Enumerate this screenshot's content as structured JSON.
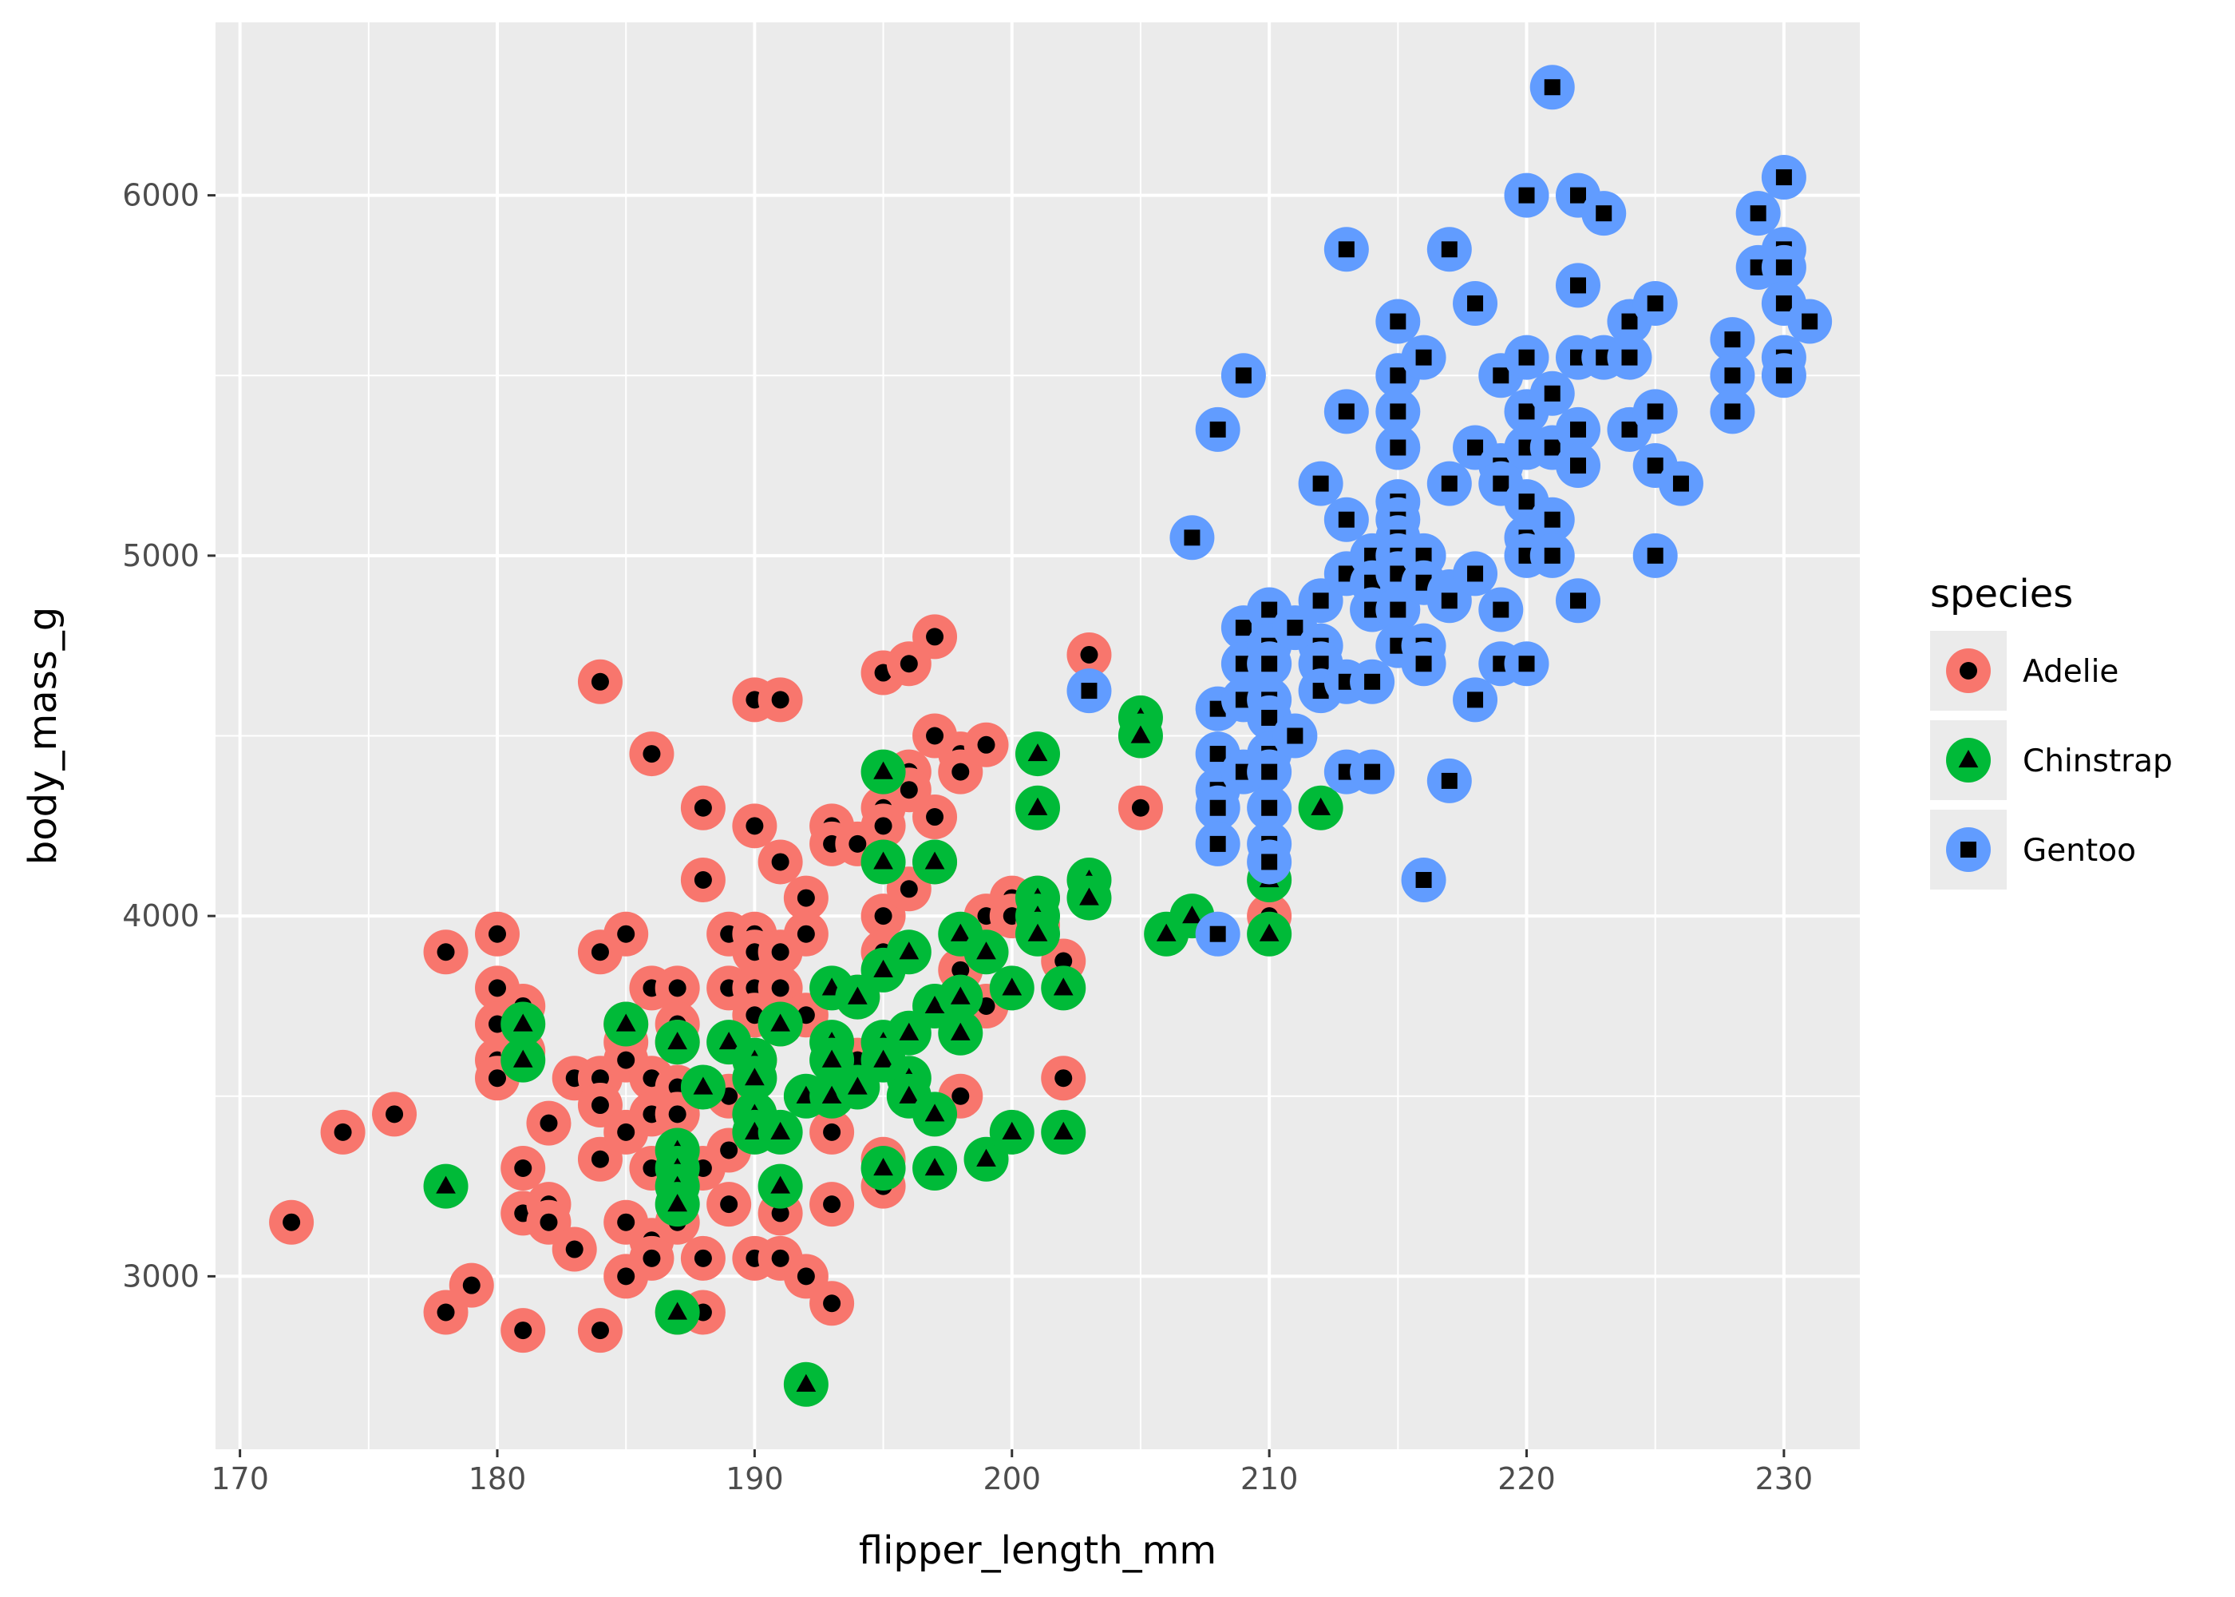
{
  "chart_data": {
    "type": "scatter",
    "title": "",
    "xlabel": "flipper_length_mm",
    "ylabel": "body_mass_g",
    "xlim": [
      169.05,
      232.95
    ],
    "ylim": [
      2520,
      6480
    ],
    "x_ticks": [
      170,
      180,
      190,
      200,
      210,
      220,
      230
    ],
    "x_tick_labels": [
      "170",
      "180",
      "190",
      "200",
      "210",
      "220",
      "230"
    ],
    "y_ticks": [
      3000,
      4000,
      5000,
      6000
    ],
    "y_tick_labels": [
      "3000",
      "4000",
      "5000",
      "6000"
    ],
    "grid": true,
    "panel_background": "#EBEBEB",
    "legend": {
      "title": "species",
      "position": "right",
      "entries": [
        {
          "label": "Adelie",
          "color": "#F8766D",
          "shape": "circle"
        },
        {
          "label": "Chinstrap",
          "color": "#00BA38",
          "shape": "triangle"
        },
        {
          "label": "Gentoo",
          "color": "#619CFF",
          "shape": "square"
        }
      ]
    },
    "series": [
      {
        "name": "Adelie",
        "color": "#F8766D",
        "shape": "circle",
        "points": [
          [
            172,
            3150
          ],
          [
            174,
            3400
          ],
          [
            176,
            3450
          ],
          [
            178,
            3900
          ],
          [
            178,
            2900
          ],
          [
            179,
            2975
          ],
          [
            180,
            3950
          ],
          [
            180,
            3800
          ],
          [
            180,
            3700
          ],
          [
            180,
            3600
          ],
          [
            180,
            3550
          ],
          [
            181,
            3300
          ],
          [
            181,
            3175
          ],
          [
            181,
            2850
          ],
          [
            181,
            3750
          ],
          [
            181,
            3625
          ],
          [
            182,
            3425
          ],
          [
            182,
            3200
          ],
          [
            182,
            3150
          ],
          [
            183,
            3550
          ],
          [
            183,
            3075
          ],
          [
            184,
            3550
          ],
          [
            184,
            3475
          ],
          [
            184,
            3325
          ],
          [
            184,
            2850
          ],
          [
            184,
            4650
          ],
          [
            184,
            3900
          ],
          [
            185,
            3950
          ],
          [
            185,
            3700
          ],
          [
            185,
            3650
          ],
          [
            185,
            3600
          ],
          [
            185,
            3400
          ],
          [
            185,
            3150
          ],
          [
            185,
            3000
          ],
          [
            186,
            3800
          ],
          [
            186,
            3550
          ],
          [
            186,
            3450
          ],
          [
            186,
            3300
          ],
          [
            186,
            3100
          ],
          [
            186,
            3050
          ],
          [
            186,
            4450
          ],
          [
            187,
            3800
          ],
          [
            187,
            3700
          ],
          [
            187,
            3650
          ],
          [
            187,
            3525
          ],
          [
            187,
            3450
          ],
          [
            187,
            3150
          ],
          [
            187,
            2900
          ],
          [
            188,
            4300
          ],
          [
            188,
            4100
          ],
          [
            188,
            3300
          ],
          [
            188,
            3050
          ],
          [
            188,
            2900
          ],
          [
            189,
            3950
          ],
          [
            189,
            3800
          ],
          [
            189,
            3500
          ],
          [
            189,
            3350
          ],
          [
            189,
            3200
          ],
          [
            190,
            4600
          ],
          [
            190,
            4250
          ],
          [
            190,
            3950
          ],
          [
            190,
            3900
          ],
          [
            190,
            3800
          ],
          [
            190,
            3725
          ],
          [
            190,
            3600
          ],
          [
            190,
            3450
          ],
          [
            190,
            3050
          ],
          [
            191,
            4600
          ],
          [
            191,
            4150
          ],
          [
            191,
            3900
          ],
          [
            191,
            3800
          ],
          [
            191,
            3700
          ],
          [
            191,
            3175
          ],
          [
            191,
            3050
          ],
          [
            192,
            4050
          ],
          [
            192,
            3950
          ],
          [
            192,
            3725
          ],
          [
            192,
            3000
          ],
          [
            193,
            4250
          ],
          [
            193,
            4200
          ],
          [
            193,
            3500
          ],
          [
            193,
            3400
          ],
          [
            193,
            3200
          ],
          [
            193,
            2925
          ],
          [
            194,
            4200
          ],
          [
            194,
            3775
          ],
          [
            194,
            3600
          ],
          [
            195,
            4675
          ],
          [
            195,
            4300
          ],
          [
            195,
            4250
          ],
          [
            195,
            4000
          ],
          [
            195,
            3900
          ],
          [
            195,
            3325
          ],
          [
            195,
            3250
          ],
          [
            196,
            4700
          ],
          [
            196,
            4400
          ],
          [
            196,
            4350
          ],
          [
            196,
            4075
          ],
          [
            197,
            4775
          ],
          [
            197,
            4500
          ],
          [
            197,
            4275
          ],
          [
            197,
            4150
          ],
          [
            198,
            4450
          ],
          [
            198,
            4400
          ],
          [
            198,
            3850
          ],
          [
            198,
            3500
          ],
          [
            199,
            4475
          ],
          [
            199,
            4000
          ],
          [
            199,
            3750
          ],
          [
            200,
            4050
          ],
          [
            200,
            4000
          ],
          [
            201,
            4050
          ],
          [
            201,
            3975
          ],
          [
            202,
            3875
          ],
          [
            202,
            3550
          ],
          [
            203,
            4725
          ],
          [
            205,
            4300
          ],
          [
            210,
            4000
          ]
        ]
      },
      {
        "name": "Chinstrap",
        "color": "#00BA38",
        "shape": "triangle",
        "points": [
          [
            178,
            3250
          ],
          [
            181,
            3700
          ],
          [
            181,
            3600
          ],
          [
            185,
            3700
          ],
          [
            187,
            3650
          ],
          [
            187,
            3350
          ],
          [
            187,
            3300
          ],
          [
            187,
            3250
          ],
          [
            187,
            3200
          ],
          [
            187,
            2900
          ],
          [
            188,
            3525
          ],
          [
            189,
            3650
          ],
          [
            190,
            3600
          ],
          [
            190,
            3550
          ],
          [
            190,
            3450
          ],
          [
            190,
            3400
          ],
          [
            191,
            3700
          ],
          [
            191,
            3400
          ],
          [
            191,
            3250
          ],
          [
            192,
            3500
          ],
          [
            192,
            2700
          ],
          [
            193,
            3800
          ],
          [
            193,
            3650
          ],
          [
            193,
            3600
          ],
          [
            193,
            3500
          ],
          [
            194,
            3525
          ],
          [
            194,
            3775
          ],
          [
            195,
            4400
          ],
          [
            195,
            4150
          ],
          [
            195,
            3850
          ],
          [
            195,
            3650
          ],
          [
            195,
            3600
          ],
          [
            195,
            3300
          ],
          [
            196,
            3900
          ],
          [
            196,
            3675
          ],
          [
            196,
            3550
          ],
          [
            196,
            3500
          ],
          [
            197,
            4150
          ],
          [
            197,
            3750
          ],
          [
            197,
            3450
          ],
          [
            197,
            3300
          ],
          [
            198,
            3950
          ],
          [
            198,
            3775
          ],
          [
            198,
            3675
          ],
          [
            199,
            3900
          ],
          [
            199,
            3325
          ],
          [
            200,
            3800
          ],
          [
            200,
            3400
          ],
          [
            201,
            4450
          ],
          [
            201,
            4300
          ],
          [
            201,
            4050
          ],
          [
            201,
            4000
          ],
          [
            201,
            3950
          ],
          [
            202,
            3800
          ],
          [
            202,
            3400
          ],
          [
            203,
            4100
          ],
          [
            203,
            4050
          ],
          [
            205,
            4550
          ],
          [
            205,
            4500
          ],
          [
            206,
            3950
          ],
          [
            207,
            4000
          ],
          [
            210,
            4800
          ],
          [
            210,
            4100
          ],
          [
            210,
            3950
          ],
          [
            212,
            4300
          ]
        ]
      },
      {
        "name": "Gentoo",
        "color": "#619CFF",
        "shape": "square",
        "points": [
          [
            203,
            4625
          ],
          [
            207,
            5050
          ],
          [
            208,
            5350
          ],
          [
            208,
            4575
          ],
          [
            208,
            4450
          ],
          [
            208,
            4350
          ],
          [
            208,
            4300
          ],
          [
            208,
            4200
          ],
          [
            208,
            3950
          ],
          [
            209,
            5500
          ],
          [
            209,
            4800
          ],
          [
            209,
            4700
          ],
          [
            209,
            4600
          ],
          [
            209,
            4400
          ],
          [
            210,
            4850
          ],
          [
            210,
            4750
          ],
          [
            210,
            4700
          ],
          [
            210,
            4600
          ],
          [
            210,
            4550
          ],
          [
            210,
            4450
          ],
          [
            210,
            4400
          ],
          [
            210,
            4300
          ],
          [
            210,
            4200
          ],
          [
            210,
            4150
          ],
          [
            211,
            4800
          ],
          [
            211,
            4500
          ],
          [
            212,
            5200
          ],
          [
            212,
            4875
          ],
          [
            212,
            4750
          ],
          [
            212,
            4700
          ],
          [
            212,
            4625
          ],
          [
            213,
            5850
          ],
          [
            213,
            5400
          ],
          [
            213,
            5100
          ],
          [
            213,
            4950
          ],
          [
            213,
            4650
          ],
          [
            213,
            4400
          ],
          [
            214,
            5000
          ],
          [
            214,
            4925
          ],
          [
            214,
            4850
          ],
          [
            214,
            4650
          ],
          [
            214,
            4400
          ],
          [
            215,
            5650
          ],
          [
            215,
            5500
          ],
          [
            215,
            5400
          ],
          [
            215,
            5300
          ],
          [
            215,
            5150
          ],
          [
            215,
            5100
          ],
          [
            215,
            5050
          ],
          [
            215,
            5000
          ],
          [
            215,
            4950
          ],
          [
            215,
            4850
          ],
          [
            215,
            4750
          ],
          [
            216,
            5550
          ],
          [
            216,
            5000
          ],
          [
            216,
            4925
          ],
          [
            216,
            4750
          ],
          [
            216,
            4700
          ],
          [
            216,
            4100
          ],
          [
            217,
            5850
          ],
          [
            217,
            5200
          ],
          [
            217,
            4900
          ],
          [
            217,
            4875
          ],
          [
            217,
            4375
          ],
          [
            218,
            5700
          ],
          [
            218,
            5300
          ],
          [
            218,
            4950
          ],
          [
            218,
            4600
          ],
          [
            219,
            5500
          ],
          [
            219,
            5250
          ],
          [
            219,
            5200
          ],
          [
            219,
            4850
          ],
          [
            219,
            4700
          ],
          [
            220,
            6000
          ],
          [
            220,
            5550
          ],
          [
            220,
            5400
          ],
          [
            220,
            5300
          ],
          [
            220,
            5150
          ],
          [
            220,
            5050
          ],
          [
            220,
            5000
          ],
          [
            220,
            4700
          ],
          [
            221,
            6300
          ],
          [
            221,
            5450
          ],
          [
            221,
            5300
          ],
          [
            221,
            5100
          ],
          [
            221,
            5000
          ],
          [
            222,
            6000
          ],
          [
            222,
            5750
          ],
          [
            222,
            5550
          ],
          [
            222,
            5350
          ],
          [
            222,
            5250
          ],
          [
            222,
            4875
          ],
          [
            223,
            5950
          ],
          [
            223,
            5550
          ],
          [
            224,
            5650
          ],
          [
            224,
            5550
          ],
          [
            224,
            5350
          ],
          [
            225,
            5700
          ],
          [
            225,
            5400
          ],
          [
            225,
            5250
          ],
          [
            225,
            5000
          ],
          [
            226,
            5200
          ],
          [
            228,
            5600
          ],
          [
            228,
            5500
          ],
          [
            228,
            5400
          ],
          [
            229,
            5950
          ],
          [
            229,
            5800
          ],
          [
            230,
            6050
          ],
          [
            230,
            5850
          ],
          [
            230,
            5800
          ],
          [
            230,
            5700
          ],
          [
            230,
            5550
          ],
          [
            230,
            5500
          ],
          [
            231,
            5650
          ]
        ]
      }
    ]
  }
}
